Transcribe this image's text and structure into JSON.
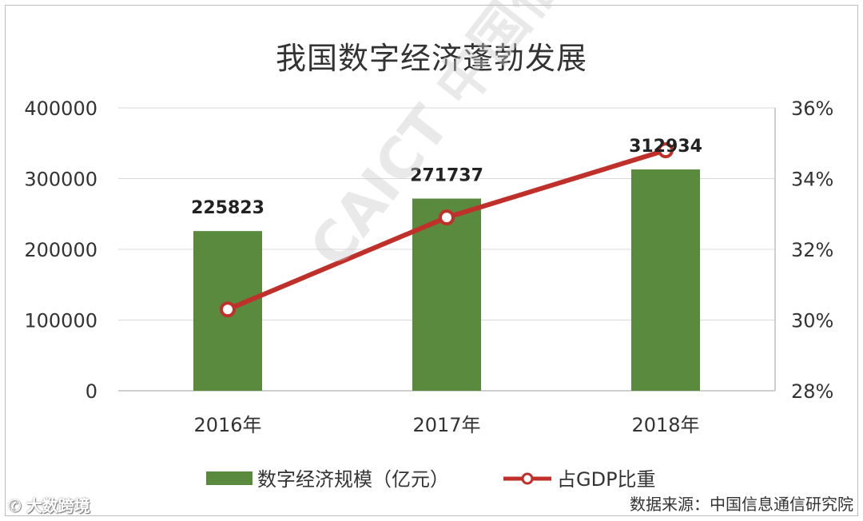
{
  "title": "我国数字经济蓬勃发展",
  "watermark": "CAICT 中国信通院",
  "brand": "大数跨境",
  "source_note": "数据来源：中国信息通信研究院",
  "colors": {
    "bar": "#5a8a3e",
    "line": "#c0302a",
    "axis_text": "#333333",
    "grid": "#d9d9d9"
  },
  "chart_data": {
    "type": "bar",
    "categories": [
      "2016年",
      "2017年",
      "2018年"
    ],
    "series": [
      {
        "name": "数字经济规模（亿元）",
        "type": "bar",
        "axis": "left",
        "values": [
          225823,
          271737,
          312934
        ],
        "data_labels": [
          "225823",
          "271737",
          "312934"
        ]
      },
      {
        "name": "占GDP比重",
        "type": "line",
        "axis": "right",
        "values": [
          30.3,
          32.9,
          34.8
        ]
      }
    ],
    "left_axis": {
      "ylim": [
        0,
        400000
      ],
      "ticks": [
        0,
        100000,
        200000,
        300000,
        400000
      ],
      "tick_labels": [
        "0",
        "100000",
        "200000",
        "300000",
        "400000"
      ]
    },
    "right_axis": {
      "ylim": [
        28,
        36
      ],
      "ticks": [
        28,
        30,
        32,
        34,
        36
      ],
      "tick_labels": [
        "28%",
        "30%",
        "32%",
        "34%",
        "36%"
      ]
    },
    "grid": true,
    "legend_position": "bottom"
  }
}
